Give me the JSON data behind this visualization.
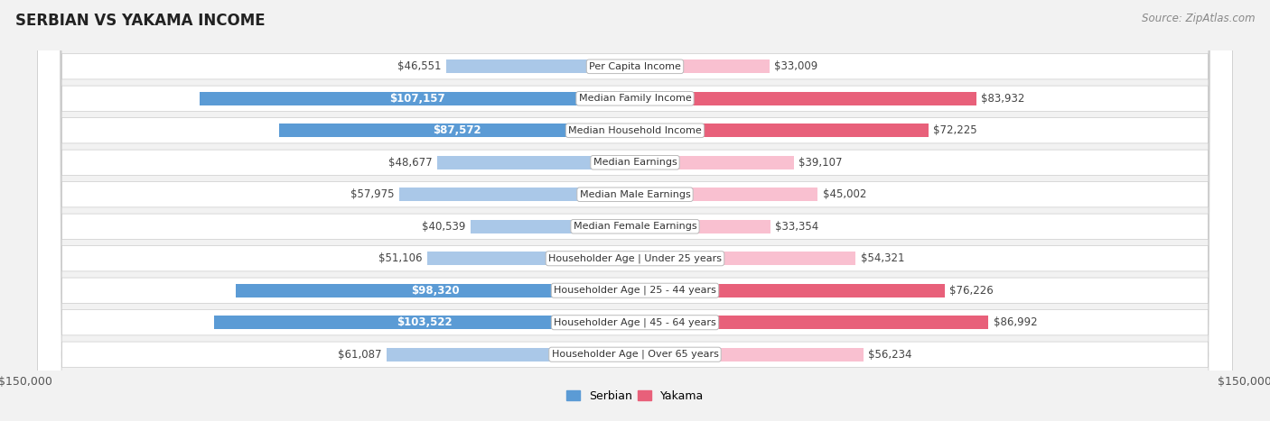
{
  "title": "SERBIAN VS YAKAMA INCOME",
  "source": "Source: ZipAtlas.com",
  "categories": [
    "Per Capita Income",
    "Median Family Income",
    "Median Household Income",
    "Median Earnings",
    "Median Male Earnings",
    "Median Female Earnings",
    "Householder Age | Under 25 years",
    "Householder Age | 25 - 44 years",
    "Householder Age | 45 - 64 years",
    "Householder Age | Over 65 years"
  ],
  "serbian_values": [
    46551,
    107157,
    87572,
    48677,
    57975,
    40539,
    51106,
    98320,
    103522,
    61087
  ],
  "yakama_values": [
    33009,
    83932,
    72225,
    39107,
    45002,
    33354,
    54321,
    76226,
    86992,
    56234
  ],
  "serbian_labels": [
    "$46,551",
    "$107,157",
    "$87,572",
    "$48,677",
    "$57,975",
    "$40,539",
    "$51,106",
    "$98,320",
    "$103,522",
    "$61,087"
  ],
  "yakama_labels": [
    "$33,009",
    "$83,932",
    "$72,225",
    "$39,107",
    "$45,002",
    "$33,354",
    "$54,321",
    "$76,226",
    "$86,992",
    "$56,234"
  ],
  "serbian_color_light": "#aac8e8",
  "serbian_color_dark": "#5b9bd5",
  "yakama_color_light": "#f9c0d0",
  "yakama_color_dark": "#e8607a",
  "inside_label_threshold": 65000,
  "max_value": 150000,
  "bg_color": "#f2f2f2"
}
